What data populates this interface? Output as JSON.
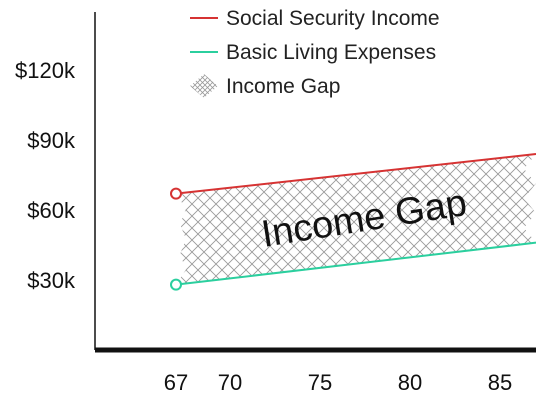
{
  "chart_data": {
    "type": "line",
    "x_ticks": [
      67,
      70,
      75,
      80,
      85
    ],
    "y_ticks": [
      {
        "value": 30000,
        "label": "$30k"
      },
      {
        "value": 60000,
        "label": "$60k"
      },
      {
        "value": 90000,
        "label": "$90k"
      },
      {
        "value": 120000,
        "label": "$120k"
      }
    ],
    "xlim": [
      62.5,
      87
    ],
    "ylim": [
      0,
      150000
    ],
    "series": [
      {
        "name": "Social Security Income",
        "color": "#d63333",
        "x": [
          67,
          87
        ],
        "y": [
          67000,
          84000
        ],
        "start_marker": "open-circle"
      },
      {
        "name": "Basic Living Expenses",
        "color": "#2bcf9e",
        "x": [
          67,
          87
        ],
        "y": [
          28000,
          46000
        ],
        "start_marker": "open-circle"
      }
    ],
    "band": {
      "name": "Income Gap",
      "pattern": "crosshatch",
      "between": [
        "Social Security Income",
        "Basic Living Expenses"
      ]
    },
    "legend": {
      "placement": "top-right",
      "entries": [
        {
          "label": "Social Security Income",
          "kind": "line",
          "color": "#d63333"
        },
        {
          "label": "Basic Living Expenses",
          "kind": "line",
          "color": "#2bcf9e"
        },
        {
          "label": "Income Gap",
          "kind": "hatch",
          "color": "#9a9a9a"
        }
      ]
    },
    "annotation": "Income Gap",
    "grid": false
  }
}
